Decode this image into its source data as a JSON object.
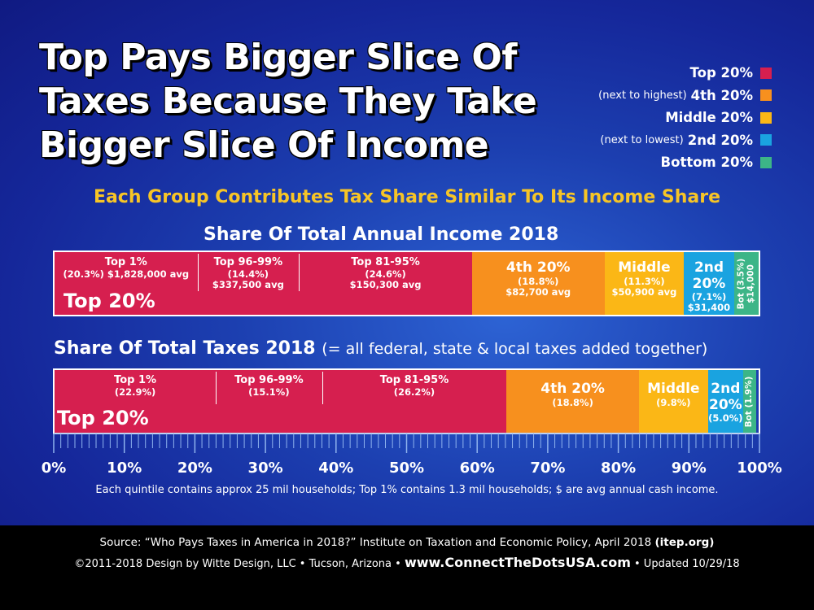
{
  "title_lines": [
    "Top Pays Bigger Slice Of",
    "Taxes Because They Take",
    "Bigger Slice Of Income"
  ],
  "subtitle": "Each Group Contributes Tax Share Similar To Its Income Share",
  "legend": [
    {
      "note": "",
      "name": "Top 20%",
      "color": "#d61f4f"
    },
    {
      "note": "(next to highest)",
      "name": "4th 20%",
      "color": "#f7901e"
    },
    {
      "note": "",
      "name": "Middle 20%",
      "color": "#fbb716"
    },
    {
      "note": "(next to lowest)",
      "name": "2nd 20%",
      "color": "#1aa3e0"
    },
    {
      "note": "",
      "name": "Bottom 20%",
      "color": "#3cb587"
    }
  ],
  "chart_data": [
    {
      "type": "bar",
      "title": "Share Of Total Annual Income 2018",
      "group_label": "Top 20%",
      "series": [
        {
          "name": "Top 1%",
          "value": 20.3,
          "lines": [
            "Top 1%",
            "(20.3%)  $1,828,000 avg"
          ]
        },
        {
          "name": "Top 96-99%",
          "value": 14.4,
          "lines": [
            "Top 96-99%",
            "(14.4%)",
            "$337,500 avg"
          ]
        },
        {
          "name": "Top 81-95%",
          "value": 24.6,
          "lines": [
            "Top 81-95%",
            "(24.6%)",
            "$150,300 avg"
          ]
        },
        {
          "name": "4th 20%",
          "value": 18.8,
          "lines": [
            "4th 20%",
            "(18.8%)",
            "$82,700 avg"
          ]
        },
        {
          "name": "Middle",
          "value": 11.3,
          "lines": [
            "Middle",
            "(11.3%)",
            "$50,900 avg"
          ]
        },
        {
          "name": "2nd 20%",
          "value": 7.1,
          "lines": [
            "2nd",
            "20%",
            "(7.1%)",
            "$31,400"
          ]
        },
        {
          "name": "Bot",
          "value": 3.5,
          "lines": [
            "Bot (3.5%)",
            "$14,000"
          ]
        }
      ]
    },
    {
      "type": "bar",
      "title": "Share Of Total Taxes 2018",
      "title_note": "(= all federal, state & local taxes added together)",
      "group_label": "Top 20%",
      "series": [
        {
          "name": "Top 1%",
          "value": 22.9,
          "lines": [
            "Top 1%",
            "(22.9%)"
          ]
        },
        {
          "name": "Top 96-99%",
          "value": 15.1,
          "lines": [
            "Top 96-99%",
            "(15.1%)"
          ]
        },
        {
          "name": "Top 81-95%",
          "value": 26.2,
          "lines": [
            "Top 81-95%",
            "(26.2%)"
          ]
        },
        {
          "name": "4th 20%",
          "value": 18.8,
          "lines": [
            "4th 20%",
            "(18.8%)"
          ]
        },
        {
          "name": "Middle",
          "value": 9.8,
          "lines": [
            "Middle",
            "(9.8%)"
          ]
        },
        {
          "name": "2nd 20%",
          "value": 5.0,
          "lines": [
            "2nd",
            "20%",
            "(5.0%)"
          ]
        },
        {
          "name": "Bot",
          "value": 1.9,
          "lines": [
            "Bot (1.9%)"
          ]
        }
      ]
    }
  ],
  "axis": {
    "ticks": [
      "0%",
      "10%",
      "20%",
      "30%",
      "40%",
      "50%",
      "60%",
      "70%",
      "80%",
      "90%",
      "100%"
    ],
    "xlim": [
      0,
      100
    ]
  },
  "footnote": "Each quintile contains approx 25 mil households; Top 1% contains 1.3 mil households; $ are avg annual cash income.",
  "footer": {
    "source": "Source: “Who Pays Taxes in America in 2018?” Institute on Taxation and Economic Policy, April 2018",
    "source_bold": "(itep.org)",
    "credit": "©2011-2018 Design by Witte Design, LLC • Tucson, Arizona •",
    "url": "www.ConnectTheDotsUSA.com",
    "updated": "• Updated 10/29/18"
  }
}
